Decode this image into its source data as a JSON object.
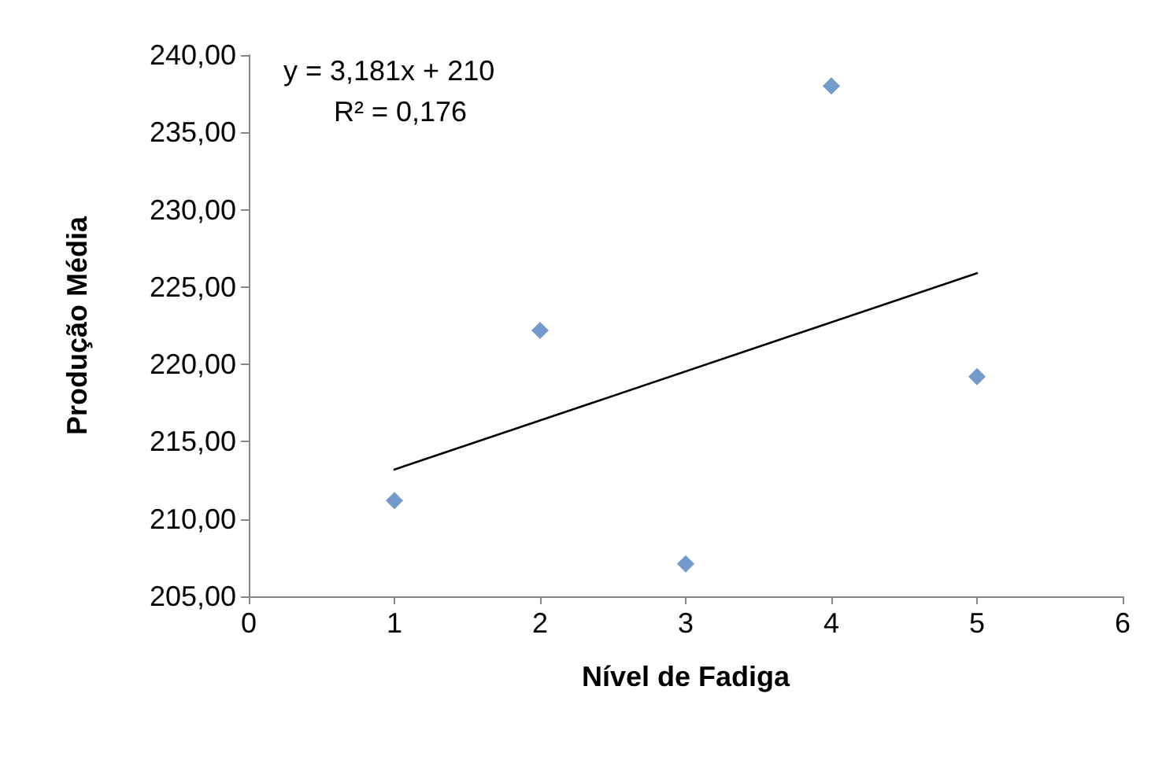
{
  "chart_data": {
    "type": "scatter",
    "xlabel": "Nível de Fadiga",
    "ylabel": "Produção Média",
    "x": [
      1,
      2,
      3,
      4,
      5
    ],
    "series": [
      {
        "type": "scatter",
        "color": "#4f81bd",
        "marker": "diamond",
        "values": [
          211.2,
          222.2,
          207.1,
          238,
          219.2
        ]
      },
      {
        "type": "line",
        "color": "#000000",
        "marker": "none",
        "x": [
          1,
          5
        ],
        "values": [
          213.2,
          225.9
        ]
      }
    ],
    "xlim": [
      0,
      6
    ],
    "xticks": [
      0,
      1,
      2,
      3,
      4,
      5,
      6
    ],
    "ylim": [
      205,
      240
    ],
    "yticks": [
      {
        "value": 205,
        "label": "205,00"
      },
      {
        "value": 210,
        "label": "210,00"
      },
      {
        "value": 215,
        "label": "215,00"
      },
      {
        "value": 220,
        "label": "220,00"
      },
      {
        "value": 225,
        "label": "225,00"
      },
      {
        "value": 230,
        "label": "230,00"
      },
      {
        "value": 235,
        "label": "235,00"
      },
      {
        "value": 240,
        "label": "240,00"
      }
    ],
    "grid": false,
    "annotations": [
      "y = 3,181x + 210",
      "R² = 0,176"
    ]
  }
}
